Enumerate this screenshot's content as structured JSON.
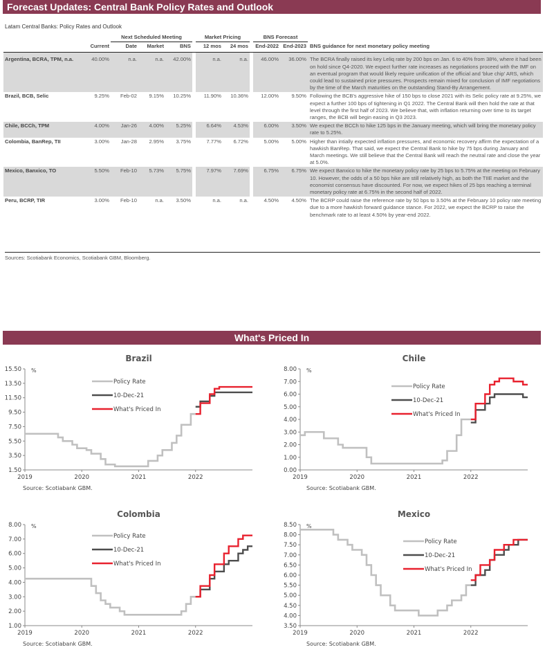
{
  "header": {
    "title": "Forecast Updates: Central Bank Policy Rates and Outlook"
  },
  "table": {
    "title": "Latam Central Banks: Policy Rates and Outlook",
    "groups": {
      "next": "Next Scheduled Meeting",
      "market": "Market Pricing",
      "bns": "BNS Forecast"
    },
    "columns": [
      "Current",
      "Date",
      "Market",
      "BNS",
      "12 mos",
      "24 mos",
      "End-2022",
      "End-2023",
      "BNS guidance for next monetary policy meeting"
    ],
    "rows": [
      {
        "name": "Argentina, BCRA, TPM, n.a.",
        "current": "40.00%",
        "date": "n.a.",
        "market": "n.a.",
        "bns": "42.00%",
        "m12": "n.a.",
        "m24": "n.a.",
        "e22": "46.00%",
        "e23": "36.00%",
        "text": "The BCRA finally raised its key Leliq rate by 200 bps on Jan. 6 to 40% from 38%, where it had been on hold since Q4-2020. We expect further rate increases as negotiations proceed with the IMF on an eventual program that would likely require unification of the official and 'blue chip' ARS, which could lead to sustained price pressures. Prospects remain mixed for conclusion of IMF negotiations by the time of the March maturities on the outstanding Stand-By Arrangement."
      },
      {
        "name": "Brazil, BCB, Selic",
        "current": "9.25%",
        "date": "Feb-02",
        "market": "9.15%",
        "bns": "10.25%",
        "m12": "11.90%",
        "m24": "10.36%",
        "e22": "12.00%",
        "e23": "9.50%",
        "text": "Following the BCB's aggressive hike of 150 bps to close 2021 with its Selic policy rate at 9.25%, we expect a further 100 bps of tightening in Q1 2022. The Central Bank will then hold the rate at that level through the first half of 2023. We believe that, with inflation returning over time to its target ranges, the BCB will begin easing in Q3 2023."
      },
      {
        "name": "Chile, BCCh, TPM",
        "current": "4.00%",
        "date": "Jan-26",
        "market": "4.00%",
        "bns": "5.25%",
        "m12": "6.64%",
        "m24": "4.53%",
        "e22": "6.00%",
        "e23": "3.50%",
        "text": "We expect the BCCh to hike 125 bps in the January meeting, which will bring the monetary policy rate to 5.25%."
      },
      {
        "name": "Colombia, BanRep, TII",
        "current": "3.00%",
        "date": "Jan-28",
        "market": "2.95%",
        "bns": "3.75%",
        "m12": "7.77%",
        "m24": "6.72%",
        "e22": "5.00%",
        "e23": "5.00%",
        "text": "Higher than intially expected inflation pressures, and economic recovery affirm the expectation of a hawkish BanRep. That said, we expect the Central Bank to hike by 75 bps during January and March meetings. We still believe that the Central Bank will reach the neutral rate and close the year at 5.0%."
      },
      {
        "name": "Mexico, Banxico, TO",
        "current": "5.50%",
        "date": "Feb-10",
        "market": "5.73%",
        "bns": "5.75%",
        "m12": "7.97%",
        "m24": "7.69%",
        "e22": "6.75%",
        "e23": "6.75%",
        "text": "We expect Banxico to hike the monetary policy rate by 25 bps to 5.75% at the meeting on February 10. However, the odds of a 50 bps hike are still relatively high, as both the TIIE market and the economist consensus have discounted. For now, we expect hikes of 25 bps reaching a terminal monetary policy rate at 6.75% in the second half of 2022."
      },
      {
        "name": "Peru, BCRP, TIR",
        "current": "3.00%",
        "date": "Feb-10",
        "market": "n.a.",
        "bns": "3.50%",
        "m12": "n.a.",
        "m24": "n.a.",
        "e22": "4.50%",
        "e23": "4.50%",
        "text": "The BCRP could raise the reference rate by 50 bps to 3.50% at the February 10 policy rate meeting due to a more hawkish forward guidance stance. For 2022, we expect the BCRP to raise the benchmark rate to at least 4.50% by year-end 2022."
      }
    ],
    "sources": "Sources: Scotiabank Economics, Scotiabank GBM, Bloomberg."
  },
  "section2": {
    "title": "What's Priced In"
  },
  "colors": {
    "brand": "#8a3a53",
    "policy": "#c0c0c0",
    "dec21": "#4d4d4d",
    "priced": "#e8212e"
  },
  "chart_data": [
    {
      "type": "line",
      "title": "Brazil",
      "ylabel": "%",
      "ylim": [
        1.5,
        15.5
      ],
      "yticks": [
        "1.50",
        "3.50",
        "5.50",
        "7.50",
        "9.50",
        "11.50",
        "13.50",
        "15.50"
      ],
      "xticks": [
        "2019",
        "2020",
        "2021",
        "2022"
      ],
      "xlim": [
        "2019-01",
        "2022-12"
      ],
      "source": "Source: Scotiabank GBM.",
      "series": [
        {
          "name": "Policy Rate",
          "step": [
            [
              "2019-01",
              6.5
            ],
            [
              "2019-08",
              6.0
            ],
            [
              "2019-09",
              5.5
            ],
            [
              "2019-11",
              5.0
            ],
            [
              "2019-12",
              4.5
            ],
            [
              "2020-02",
              4.25
            ],
            [
              "2020-03",
              3.75
            ],
            [
              "2020-05",
              3.0
            ],
            [
              "2020-06",
              2.25
            ],
            [
              "2020-08",
              2.0
            ],
            [
              "2021-03",
              2.75
            ],
            [
              "2021-05",
              3.5
            ],
            [
              "2021-06",
              4.25
            ],
            [
              "2021-08",
              5.25
            ],
            [
              "2021-09",
              6.25
            ],
            [
              "2021-10",
              7.75
            ],
            [
              "2021-12",
              9.25
            ]
          ],
          "end": "2022-01"
        },
        {
          "name": "10-Dec-21",
          "step": [
            [
              "2022-01",
              10.25
            ],
            [
              "2022-02",
              11.0
            ],
            [
              "2022-04",
              11.75
            ],
            [
              "2022-05",
              12.25
            ]
          ],
          "end": "2023-01"
        },
        {
          "name": "What's Priced In",
          "step": [
            [
              "2022-01",
              9.25
            ],
            [
              "2022-02",
              10.75
            ],
            [
              "2022-04",
              12.0
            ],
            [
              "2022-05",
              12.75
            ],
            [
              "2022-06",
              13.0
            ]
          ],
          "end": "2023-01"
        }
      ]
    },
    {
      "type": "line",
      "title": "Chile",
      "ylabel": "%",
      "ylim": [
        0,
        8
      ],
      "yticks": [
        "0.00",
        "1.00",
        "2.00",
        "3.00",
        "4.00",
        "5.00",
        "6.00",
        "7.00",
        "8.00"
      ],
      "xticks": [
        "2019",
        "2020",
        "2021",
        "2022"
      ],
      "xlim": [
        "2019-01",
        "2022-12"
      ],
      "source": "Source: Scotiabank GBM.",
      "series": [
        {
          "name": "Policy Rate",
          "step": [
            [
              "2019-01",
              2.75
            ],
            [
              "2019-02",
              3.0
            ],
            [
              "2019-06",
              2.5
            ],
            [
              "2019-09",
              2.0
            ],
            [
              "2019-10",
              1.75
            ],
            [
              "2020-03",
              1.0
            ],
            [
              "2020-04",
              0.5
            ],
            [
              "2021-07",
              0.75
            ],
            [
              "2021-08",
              1.5
            ],
            [
              "2021-10",
              2.75
            ],
            [
              "2021-11",
              4.0
            ]
          ],
          "end": "2022-01"
        },
        {
          "name": "10-Dec-21",
          "step": [
            [
              "2022-01",
              3.75
            ],
            [
              "2022-02",
              4.75
            ],
            [
              "2022-04",
              5.25
            ],
            [
              "2022-05",
              5.75
            ],
            [
              "2022-06",
              6.0
            ],
            [
              "2022-12",
              5.75
            ]
          ],
          "end": "2023-01"
        },
        {
          "name": "What's Priced In",
          "step": [
            [
              "2022-01",
              4.0
            ],
            [
              "2022-02",
              5.25
            ],
            [
              "2022-04",
              6.0
            ],
            [
              "2022-05",
              6.75
            ],
            [
              "2022-06",
              7.0
            ],
            [
              "2022-07",
              7.25
            ],
            [
              "2022-10",
              7.0
            ],
            [
              "2022-12",
              6.75
            ]
          ],
          "end": "2023-01"
        }
      ]
    },
    {
      "type": "line",
      "title": "Colombia",
      "ylabel": "%",
      "ylim": [
        1,
        8
      ],
      "yticks": [
        "1.00",
        "2.00",
        "3.00",
        "4.00",
        "5.00",
        "6.00",
        "7.00",
        "8.00"
      ],
      "xticks": [
        "2019",
        "2020",
        "2021",
        "2022"
      ],
      "xlim": [
        "2019-01",
        "2022-12"
      ],
      "source": "Source: Scotiabank GBM.",
      "series": [
        {
          "name": "Policy Rate",
          "step": [
            [
              "2019-01",
              4.25
            ],
            [
              "2020-03",
              3.75
            ],
            [
              "2020-04",
              3.25
            ],
            [
              "2020-05",
              2.75
            ],
            [
              "2020-06",
              2.5
            ],
            [
              "2020-07",
              2.25
            ],
            [
              "2020-09",
              2.0
            ],
            [
              "2020-10",
              1.75
            ],
            [
              "2021-10",
              2.0
            ],
            [
              "2021-11",
              2.5
            ],
            [
              "2021-12",
              3.0
            ]
          ],
          "end": "2022-01"
        },
        {
          "name": "10-Dec-21",
          "step": [
            [
              "2022-01",
              3.0
            ],
            [
              "2022-02",
              3.5
            ],
            [
              "2022-04",
              4.25
            ],
            [
              "2022-05",
              4.75
            ],
            [
              "2022-07",
              5.25
            ],
            [
              "2022-08",
              5.5
            ],
            [
              "2022-10",
              6.0
            ],
            [
              "2022-11",
              6.25
            ],
            [
              "2022-12",
              6.5
            ]
          ],
          "end": "2023-01"
        },
        {
          "name": "What's Priced In",
          "step": [
            [
              "2022-01",
              3.0
            ],
            [
              "2022-02",
              3.75
            ],
            [
              "2022-04",
              4.5
            ],
            [
              "2022-05",
              5.25
            ],
            [
              "2022-07",
              6.0
            ],
            [
              "2022-08",
              6.5
            ],
            [
              "2022-10",
              7.0
            ],
            [
              "2022-11",
              7.25
            ]
          ],
          "end": "2023-01"
        }
      ]
    },
    {
      "type": "line",
      "title": "Mexico",
      "ylabel": "%",
      "ylim": [
        3.5,
        8.5
      ],
      "yticks": [
        "3.50",
        "4.00",
        "4.50",
        "5.00",
        "5.50",
        "6.00",
        "6.50",
        "7.00",
        "7.50",
        "8.00",
        "8.50"
      ],
      "xticks": [
        "2019",
        "2020",
        "2021",
        "2022"
      ],
      "xlim": [
        "2019-01",
        "2022-12"
      ],
      "source": "Source: Scotiabank GBM.",
      "series": [
        {
          "name": "Policy Rate",
          "step": [
            [
              "2019-01",
              8.25
            ],
            [
              "2019-08",
              8.0
            ],
            [
              "2019-09",
              7.75
            ],
            [
              "2019-11",
              7.5
            ],
            [
              "2019-12",
              7.25
            ],
            [
              "2020-02",
              7.0
            ],
            [
              "2020-03",
              6.5
            ],
            [
              "2020-04",
              6.0
            ],
            [
              "2020-05",
              5.5
            ],
            [
              "2020-06",
              5.0
            ],
            [
              "2020-08",
              4.5
            ],
            [
              "2020-09",
              4.25
            ],
            [
              "2021-02",
              4.0
            ],
            [
              "2021-06",
              4.25
            ],
            [
              "2021-08",
              4.5
            ],
            [
              "2021-09",
              4.75
            ],
            [
              "2021-11",
              5.0
            ],
            [
              "2021-12",
              5.5
            ]
          ],
          "end": "2022-01"
        },
        {
          "name": "10-Dec-21",
          "step": [
            [
              "2022-01",
              5.5
            ],
            [
              "2022-02",
              6.0
            ],
            [
              "2022-04",
              6.25
            ],
            [
              "2022-05",
              6.75
            ],
            [
              "2022-06",
              7.0
            ],
            [
              "2022-08",
              7.25
            ],
            [
              "2022-09",
              7.5
            ],
            [
              "2022-11",
              7.75
            ]
          ],
          "end": "2023-01"
        },
        {
          "name": "What's Priced In",
          "step": [
            [
              "2022-01",
              5.75
            ],
            [
              "2022-02",
              6.0
            ],
            [
              "2022-03",
              6.5
            ],
            [
              "2022-05",
              6.75
            ],
            [
              "2022-06",
              7.25
            ],
            [
              "2022-08",
              7.5
            ],
            [
              "2022-10",
              7.75
            ]
          ],
          "end": "2023-01"
        }
      ]
    }
  ]
}
